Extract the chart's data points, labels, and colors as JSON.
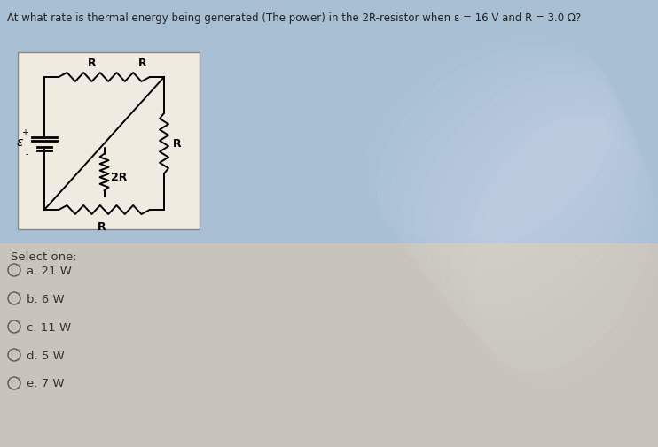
{
  "title": "At what rate is thermal energy being generated (The power) in the 2R-resistor when ε = 16 V and R = 3.0 Ω?",
  "bg_top_color": "#a8bfd4",
  "bg_bottom_color": "#d0ccc4",
  "circuit_box_color": "#f0ebe0",
  "circuit_border_color": "#888888",
  "options_label": "Select one:",
  "options": [
    "a. 21 W",
    "b. 6 W",
    "c. 11 W",
    "d. 5 W",
    "e. 7 W"
  ],
  "title_fontsize": 8.5,
  "options_fontsize": 9.5,
  "label_fontsize": 9,
  "circuit_labels": {
    "R_top": "R",
    "R_right": "R",
    "R_bottom": "R",
    "R_diag": "2R",
    "epsilon": "ε",
    "plus": "+",
    "minus": "-"
  }
}
